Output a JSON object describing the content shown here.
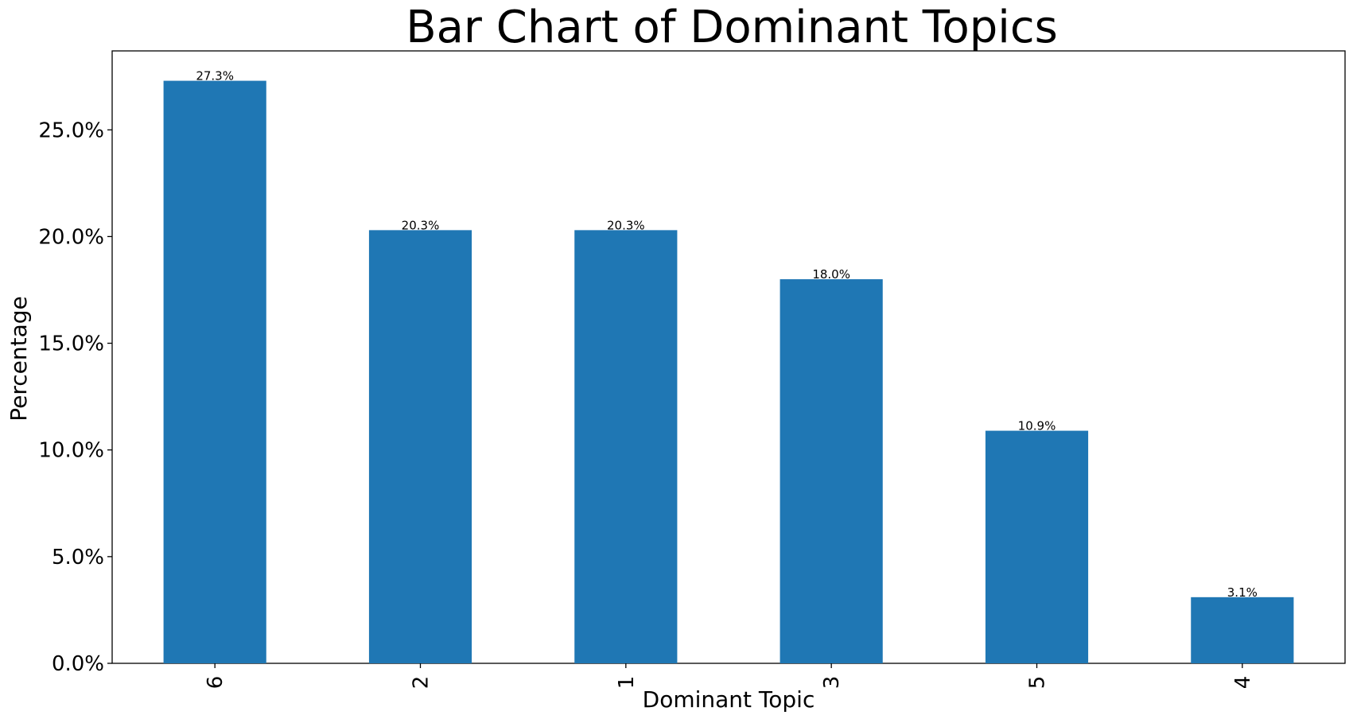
{
  "chart_data": {
    "type": "bar",
    "title": "Bar Chart of Dominant Topics",
    "xlabel": "Dominant Topic",
    "ylabel": "Percentage",
    "categories": [
      "6",
      "2",
      "1",
      "3",
      "5",
      "4"
    ],
    "values": [
      27.3,
      20.3,
      20.3,
      18.0,
      10.9,
      3.1
    ],
    "data_labels": [
      "27.3%",
      "20.3%",
      "20.3%",
      "18.0%",
      "10.9%",
      "3.1%"
    ],
    "ylim": [
      0,
      28.7
    ],
    "yticks": [
      0,
      5,
      10,
      15,
      20,
      25
    ],
    "ytick_labels": [
      "0.0%",
      "5.0%",
      "10.0%",
      "15.0%",
      "20.0%",
      "25.0%"
    ],
    "bar_color": "#1f77b4",
    "grid": false,
    "legend": "none"
  }
}
